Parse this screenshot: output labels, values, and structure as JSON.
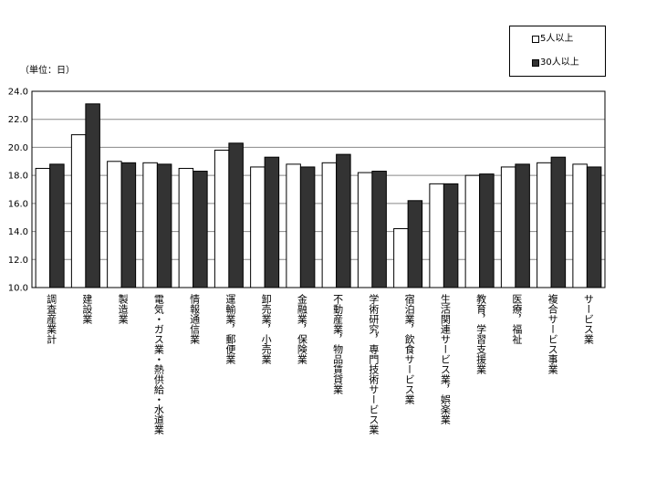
{
  "chart_data": {
    "type": "bar",
    "unit_label": "（単位：日）",
    "ylim": [
      10.0,
      24.0
    ],
    "yticks": [
      "24.0",
      "22.0",
      "20.0",
      "18.0",
      "16.0",
      "14.0",
      "12.0",
      "10.0"
    ],
    "grid": true,
    "legend_position": "top-right",
    "categories": [
      "調査産業計",
      "建設業",
      "製造業",
      "電気・ガス業・熱供給・水道業",
      "情報通信業",
      "運輸業，郵便業",
      "卸売業，小売業",
      "金融業，保険業",
      "不動産業，物品賃貸業",
      "学術研究，専門技術サービス業",
      "宿泊業，飲食サービス業",
      "生活関連サービス業，娯楽業",
      "教育，学習支援業",
      "医療，福祉",
      "複合サービス事業",
      "サービス業"
    ],
    "series": [
      {
        "name": "5人以上",
        "color": "#ffffff",
        "values": [
          18.5,
          20.9,
          19.0,
          18.9,
          18.5,
          19.8,
          18.6,
          18.8,
          18.9,
          18.2,
          14.2,
          17.4,
          18.0,
          18.6,
          18.9,
          18.8
        ]
      },
      {
        "name": "30人以上",
        "color": "#333333",
        "values": [
          18.8,
          23.1,
          18.9,
          18.8,
          18.3,
          20.3,
          19.3,
          18.6,
          19.5,
          18.3,
          16.2,
          17.4,
          18.1,
          18.8,
          19.3,
          18.6
        ]
      }
    ]
  }
}
